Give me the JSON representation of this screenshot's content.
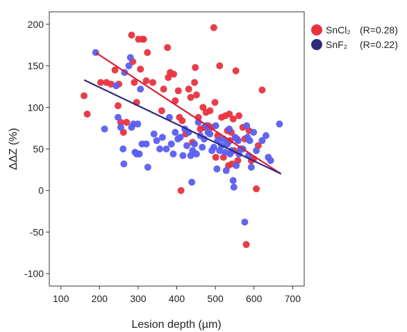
{
  "chart_data": {
    "type": "scatter",
    "title": "",
    "xlabel": "Lesion depth (µm)",
    "ylabel": "ΔΔZ (%)",
    "xlim": [
      70,
      730
    ],
    "ylim": [
      -115,
      215
    ],
    "xticks": [
      100,
      200,
      300,
      400,
      500,
      600,
      700
    ],
    "yticks": [
      -100,
      -50,
      0,
      50,
      100,
      150,
      200
    ],
    "grid": false,
    "legend": "outside-right-top",
    "series": [
      {
        "name": "SnCl₂",
        "r_label": "(R=0.28)",
        "color": "#e8333f",
        "points": [
          [
            160,
            114
          ],
          [
            168,
            92
          ],
          [
            203,
            130
          ],
          [
            218,
            130
          ],
          [
            230,
            128
          ],
          [
            240,
            145
          ],
          [
            248,
            102
          ],
          [
            250,
            128
          ],
          [
            255,
            82
          ],
          [
            262,
            70
          ],
          [
            270,
            82
          ],
          [
            283,
            187
          ],
          [
            286,
            155
          ],
          [
            290,
            130
          ],
          [
            296,
            106
          ],
          [
            301,
            182
          ],
          [
            306,
            146
          ],
          [
            311,
            182
          ],
          [
            314,
            182
          ],
          [
            321,
            132
          ],
          [
            324,
            166
          ],
          [
            338,
            130
          ],
          [
            361,
            96
          ],
          [
            366,
            122
          ],
          [
            376,
            172
          ],
          [
            378,
            136
          ],
          [
            383,
            142
          ],
          [
            392,
            140
          ],
          [
            396,
            108
          ],
          [
            404,
            120
          ],
          [
            407,
            88
          ],
          [
            411,
            0
          ],
          [
            414,
            84
          ],
          [
            423,
            68
          ],
          [
            431,
            122
          ],
          [
            436,
            112
          ],
          [
            441,
            58
          ],
          [
            446,
            130
          ],
          [
            448,
            148
          ],
          [
            451,
            115
          ],
          [
            456,
            88
          ],
          [
            461,
            74
          ],
          [
            468,
            100
          ],
          [
            471,
            76
          ],
          [
            476,
            94
          ],
          [
            481,
            78
          ],
          [
            486,
            96
          ],
          [
            491,
            76
          ],
          [
            496,
            196
          ],
          [
            499,
            106
          ],
          [
            501,
            40
          ],
          [
            506,
            66
          ],
          [
            511,
            150
          ],
          [
            516,
            88
          ],
          [
            521,
            40
          ],
          [
            526,
            90
          ],
          [
            531,
            72
          ],
          [
            534,
            30
          ],
          [
            536,
            92
          ],
          [
            538,
            60
          ],
          [
            541,
            70
          ],
          [
            543,
            32
          ],
          [
            546,
            86
          ],
          [
            548,
            48
          ],
          [
            553,
            144
          ],
          [
            556,
            62
          ],
          [
            558,
            36
          ],
          [
            561,
            90
          ],
          [
            565,
            50
          ],
          [
            571,
            76
          ],
          [
            576,
            62
          ],
          [
            580,
            -65
          ],
          [
            587,
            72
          ],
          [
            593,
            36
          ],
          [
            599,
            38
          ],
          [
            606,
            2
          ],
          [
            611,
            54
          ],
          [
            621,
            121
          ]
        ],
        "trend": [
          [
            190,
            166
          ],
          [
            670,
            20
          ]
        ]
      },
      {
        "name": "SnF₂",
        "r_label": "(R=0.22)",
        "color": "#5a5ef0",
        "points": [
          [
            190,
            166
          ],
          [
            213,
            74
          ],
          [
            243,
            126
          ],
          [
            248,
            88
          ],
          [
            255,
            76
          ],
          [
            261,
            50
          ],
          [
            263,
            32
          ],
          [
            265,
            142
          ],
          [
            276,
            150
          ],
          [
            280,
            160
          ],
          [
            283,
            76
          ],
          [
            288,
            80
          ],
          [
            292,
            46
          ],
          [
            296,
            44
          ],
          [
            299,
            80
          ],
          [
            303,
            44
          ],
          [
            306,
            122
          ],
          [
            310,
            56
          ],
          [
            321,
            56
          ],
          [
            325,
            28
          ],
          [
            341,
            68
          ],
          [
            348,
            60
          ],
          [
            356,
            50
          ],
          [
            363,
            64
          ],
          [
            373,
            50
          ],
          [
            381,
            88
          ],
          [
            386,
            56
          ],
          [
            391,
            44
          ],
          [
            396,
            70
          ],
          [
            403,
            62
          ],
          [
            409,
            64
          ],
          [
            416,
            42
          ],
          [
            421,
            74
          ],
          [
            426,
            54
          ],
          [
            431,
            70
          ],
          [
            436,
            42
          ],
          [
            439,
            10
          ],
          [
            441,
            48
          ],
          [
            446,
            56
          ],
          [
            451,
            44
          ],
          [
            456,
            82
          ],
          [
            461,
            66
          ],
          [
            466,
            52
          ],
          [
            471,
            62
          ],
          [
            476,
            78
          ],
          [
            481,
            70
          ],
          [
            486,
            68
          ],
          [
            491,
            48
          ],
          [
            496,
            52
          ],
          [
            501,
            78
          ],
          [
            504,
            26
          ],
          [
            506,
            60
          ],
          [
            511,
            48
          ],
          [
            516,
            54
          ],
          [
            521,
            62
          ],
          [
            525,
            46
          ],
          [
            528,
            24
          ],
          [
            531,
            56
          ],
          [
            536,
            74
          ],
          [
            538,
            44
          ],
          [
            542,
            48
          ],
          [
            546,
            12
          ],
          [
            548,
            4
          ],
          [
            551,
            64
          ],
          [
            554,
            30
          ],
          [
            559,
            60
          ],
          [
            561,
            44
          ],
          [
            566,
            50
          ],
          [
            571,
            50
          ],
          [
            576,
            -38
          ],
          [
            581,
            78
          ],
          [
            583,
            64
          ],
          [
            586,
            42
          ],
          [
            589,
            60
          ],
          [
            593,
            28
          ],
          [
            599,
            70
          ],
          [
            606,
            48
          ],
          [
            621,
            60
          ],
          [
            631,
            66
          ],
          [
            637,
            40
          ],
          [
            643,
            36
          ],
          [
            666,
            80
          ]
        ],
        "trend": [
          [
            160,
            133
          ],
          [
            670,
            20
          ]
        ]
      }
    ]
  }
}
